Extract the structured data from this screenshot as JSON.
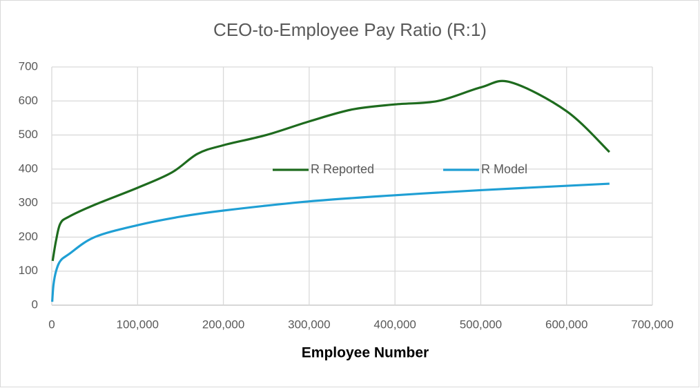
{
  "chart_data": {
    "type": "line",
    "title": "CEO-to-Employee Pay Ratio (R:1)",
    "x_label": "Employee Number",
    "xlim": [
      0,
      700000
    ],
    "xticks": [
      0,
      {
        "value": 100000,
        "label": "100,000"
      },
      {
        "value": 200000,
        "label": "200,000"
      },
      {
        "value": 300000,
        "label": "300,000"
      },
      {
        "value": 400000,
        "label": "400,000"
      },
      {
        "value": 500000,
        "label": "500,000"
      },
      {
        "value": 600000,
        "label": "600,000"
      },
      {
        "value": 700000,
        "label": "700,000"
      }
    ],
    "ylim": [
      0,
      700
    ],
    "yticks": [
      0,
      100,
      200,
      300,
      400,
      500,
      600,
      700
    ],
    "grid": true,
    "legend": "center",
    "series": [
      {
        "name": "R Reported",
        "color": "#1e6b1e",
        "x": [
          1000,
          5000,
          10000,
          20000,
          50000,
          100000,
          140000,
          170000,
          200000,
          250000,
          300000,
          350000,
          400000,
          450000,
          500000,
          535000,
          600000,
          650000
        ],
        "values": [
          130,
          190,
          240,
          260,
          295,
          345,
          390,
          445,
          470,
          500,
          540,
          575,
          590,
          600,
          640,
          655,
          570,
          450
        ]
      },
      {
        "name": "R Model",
        "color": "#1f9fd4",
        "x": [
          500,
          2000,
          5000,
          10000,
          20000,
          50000,
          100000,
          150000,
          200000,
          300000,
          400000,
          500000,
          650000
        ],
        "values": [
          10,
          60,
          100,
          130,
          150,
          200,
          235,
          260,
          278,
          305,
          323,
          338,
          357
        ]
      }
    ]
  }
}
